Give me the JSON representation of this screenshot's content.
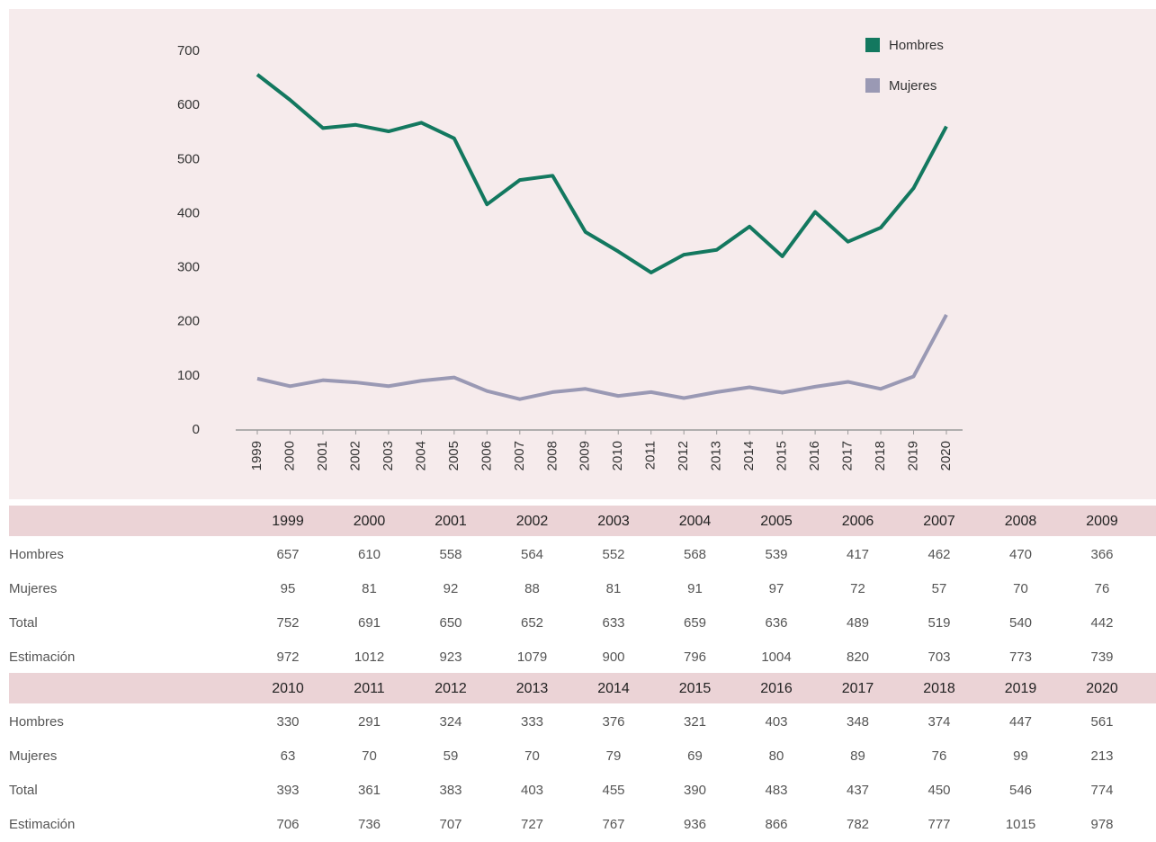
{
  "chart_data": {
    "type": "line",
    "x": [
      1999,
      2000,
      2001,
      2002,
      2003,
      2004,
      2005,
      2006,
      2007,
      2008,
      2009,
      2010,
      2011,
      2012,
      2013,
      2014,
      2015,
      2016,
      2017,
      2018,
      2019,
      2020
    ],
    "series": [
      {
        "name": "Hombres",
        "color": "#13785f",
        "values": [
          657,
          610,
          558,
          564,
          552,
          568,
          539,
          417,
          462,
          470,
          366,
          330,
          291,
          324,
          333,
          376,
          321,
          403,
          348,
          374,
          447,
          561
        ]
      },
      {
        "name": "Mujeres",
        "color": "#9a99b4",
        "values": [
          95,
          81,
          92,
          88,
          81,
          91,
          97,
          72,
          57,
          70,
          76,
          63,
          70,
          59,
          70,
          79,
          69,
          80,
          89,
          76,
          99,
          213
        ]
      }
    ],
    "ylim": [
      0,
      700
    ],
    "yticks": [
      0,
      100,
      200,
      300,
      400,
      500,
      600,
      700
    ],
    "legend": "upper right"
  },
  "table": {
    "blocks": [
      {
        "years": [
          "1999",
          "2000",
          "2001",
          "2002",
          "2003",
          "2004",
          "2005",
          "2006",
          "2007",
          "2008",
          "2009"
        ],
        "rows": [
          {
            "label": "Hombres",
            "values": [
              "657",
              "610",
              "558",
              "564",
              "552",
              "568",
              "539",
              "417",
              "462",
              "470",
              "366"
            ]
          },
          {
            "label": "Mujeres",
            "values": [
              "95",
              "81",
              "92",
              "88",
              "81",
              "91",
              "97",
              "72",
              "57",
              "70",
              "76"
            ]
          },
          {
            "label": "Total",
            "values": [
              "752",
              "691",
              "650",
              "652",
              "633",
              "659",
              "636",
              "489",
              "519",
              "540",
              "442"
            ]
          },
          {
            "label": "Estimación",
            "values": [
              "972",
              "1012",
              "923",
              "1079",
              "900",
              "796",
              "1004",
              "820",
              "703",
              "773",
              "739"
            ]
          }
        ]
      },
      {
        "years": [
          "2010",
          "2011",
          "2012",
          "2013",
          "2014",
          "2015",
          "2016",
          "2017",
          "2018",
          "2019",
          "2020"
        ],
        "rows": [
          {
            "label": "Hombres",
            "values": [
              "330",
              "291",
              "324",
              "333",
              "376",
              "321",
              "403",
              "348",
              "374",
              "447",
              "561"
            ]
          },
          {
            "label": "Mujeres",
            "values": [
              "63",
              "70",
              "59",
              "70",
              "79",
              "69",
              "80",
              "89",
              "76",
              "99",
              "213"
            ]
          },
          {
            "label": "Total",
            "values": [
              "393",
              "361",
              "383",
              "403",
              "455",
              "390",
              "483",
              "437",
              "450",
              "546",
              "774"
            ]
          },
          {
            "label": "Estimación",
            "values": [
              "706",
              "736",
              "707",
              "727",
              "767",
              "936",
              "866",
              "782",
              "777",
              "1015",
              "978"
            ]
          }
        ]
      }
    ]
  }
}
